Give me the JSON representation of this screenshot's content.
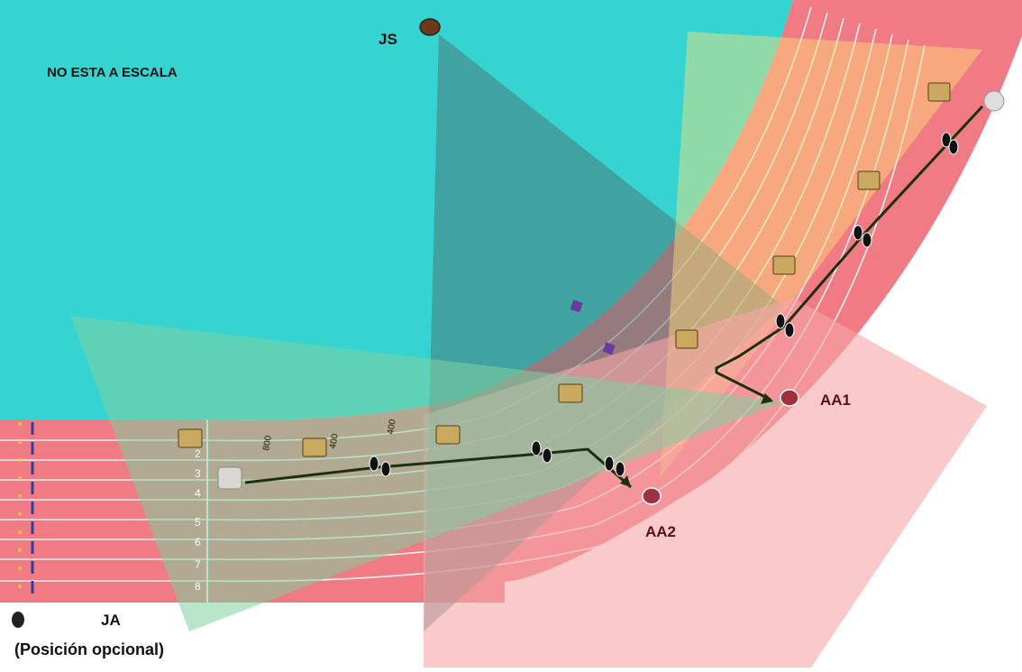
{
  "diagram": {
    "note": "NO ESTA A ESCALA",
    "officials": {
      "js": "JS",
      "aa1": "AA1",
      "aa2": "AA2",
      "ja": "JA",
      "ja_note": "(Posición opcional)"
    },
    "lane_numbers": [
      "2",
      "3",
      "4",
      "5",
      "6",
      "7",
      "8"
    ],
    "distance_markers": [
      "800",
      "400",
      "400"
    ],
    "colors": {
      "infield": "#35d4d0",
      "track": "#f07b84",
      "js_view_cone": "#4a7a7a",
      "ja_view_cone": "#7fd0a0",
      "aa1_view_cone": "#f7a6a8",
      "aa2_view_cone": "#f7a6a8",
      "js_yellow_cone": "#ffe07a",
      "path_line": "#1c3010"
    },
    "icons": [
      "official-figure-icon",
      "footsteps-icon",
      "hurdle-icon",
      "runner-icon"
    ]
  }
}
